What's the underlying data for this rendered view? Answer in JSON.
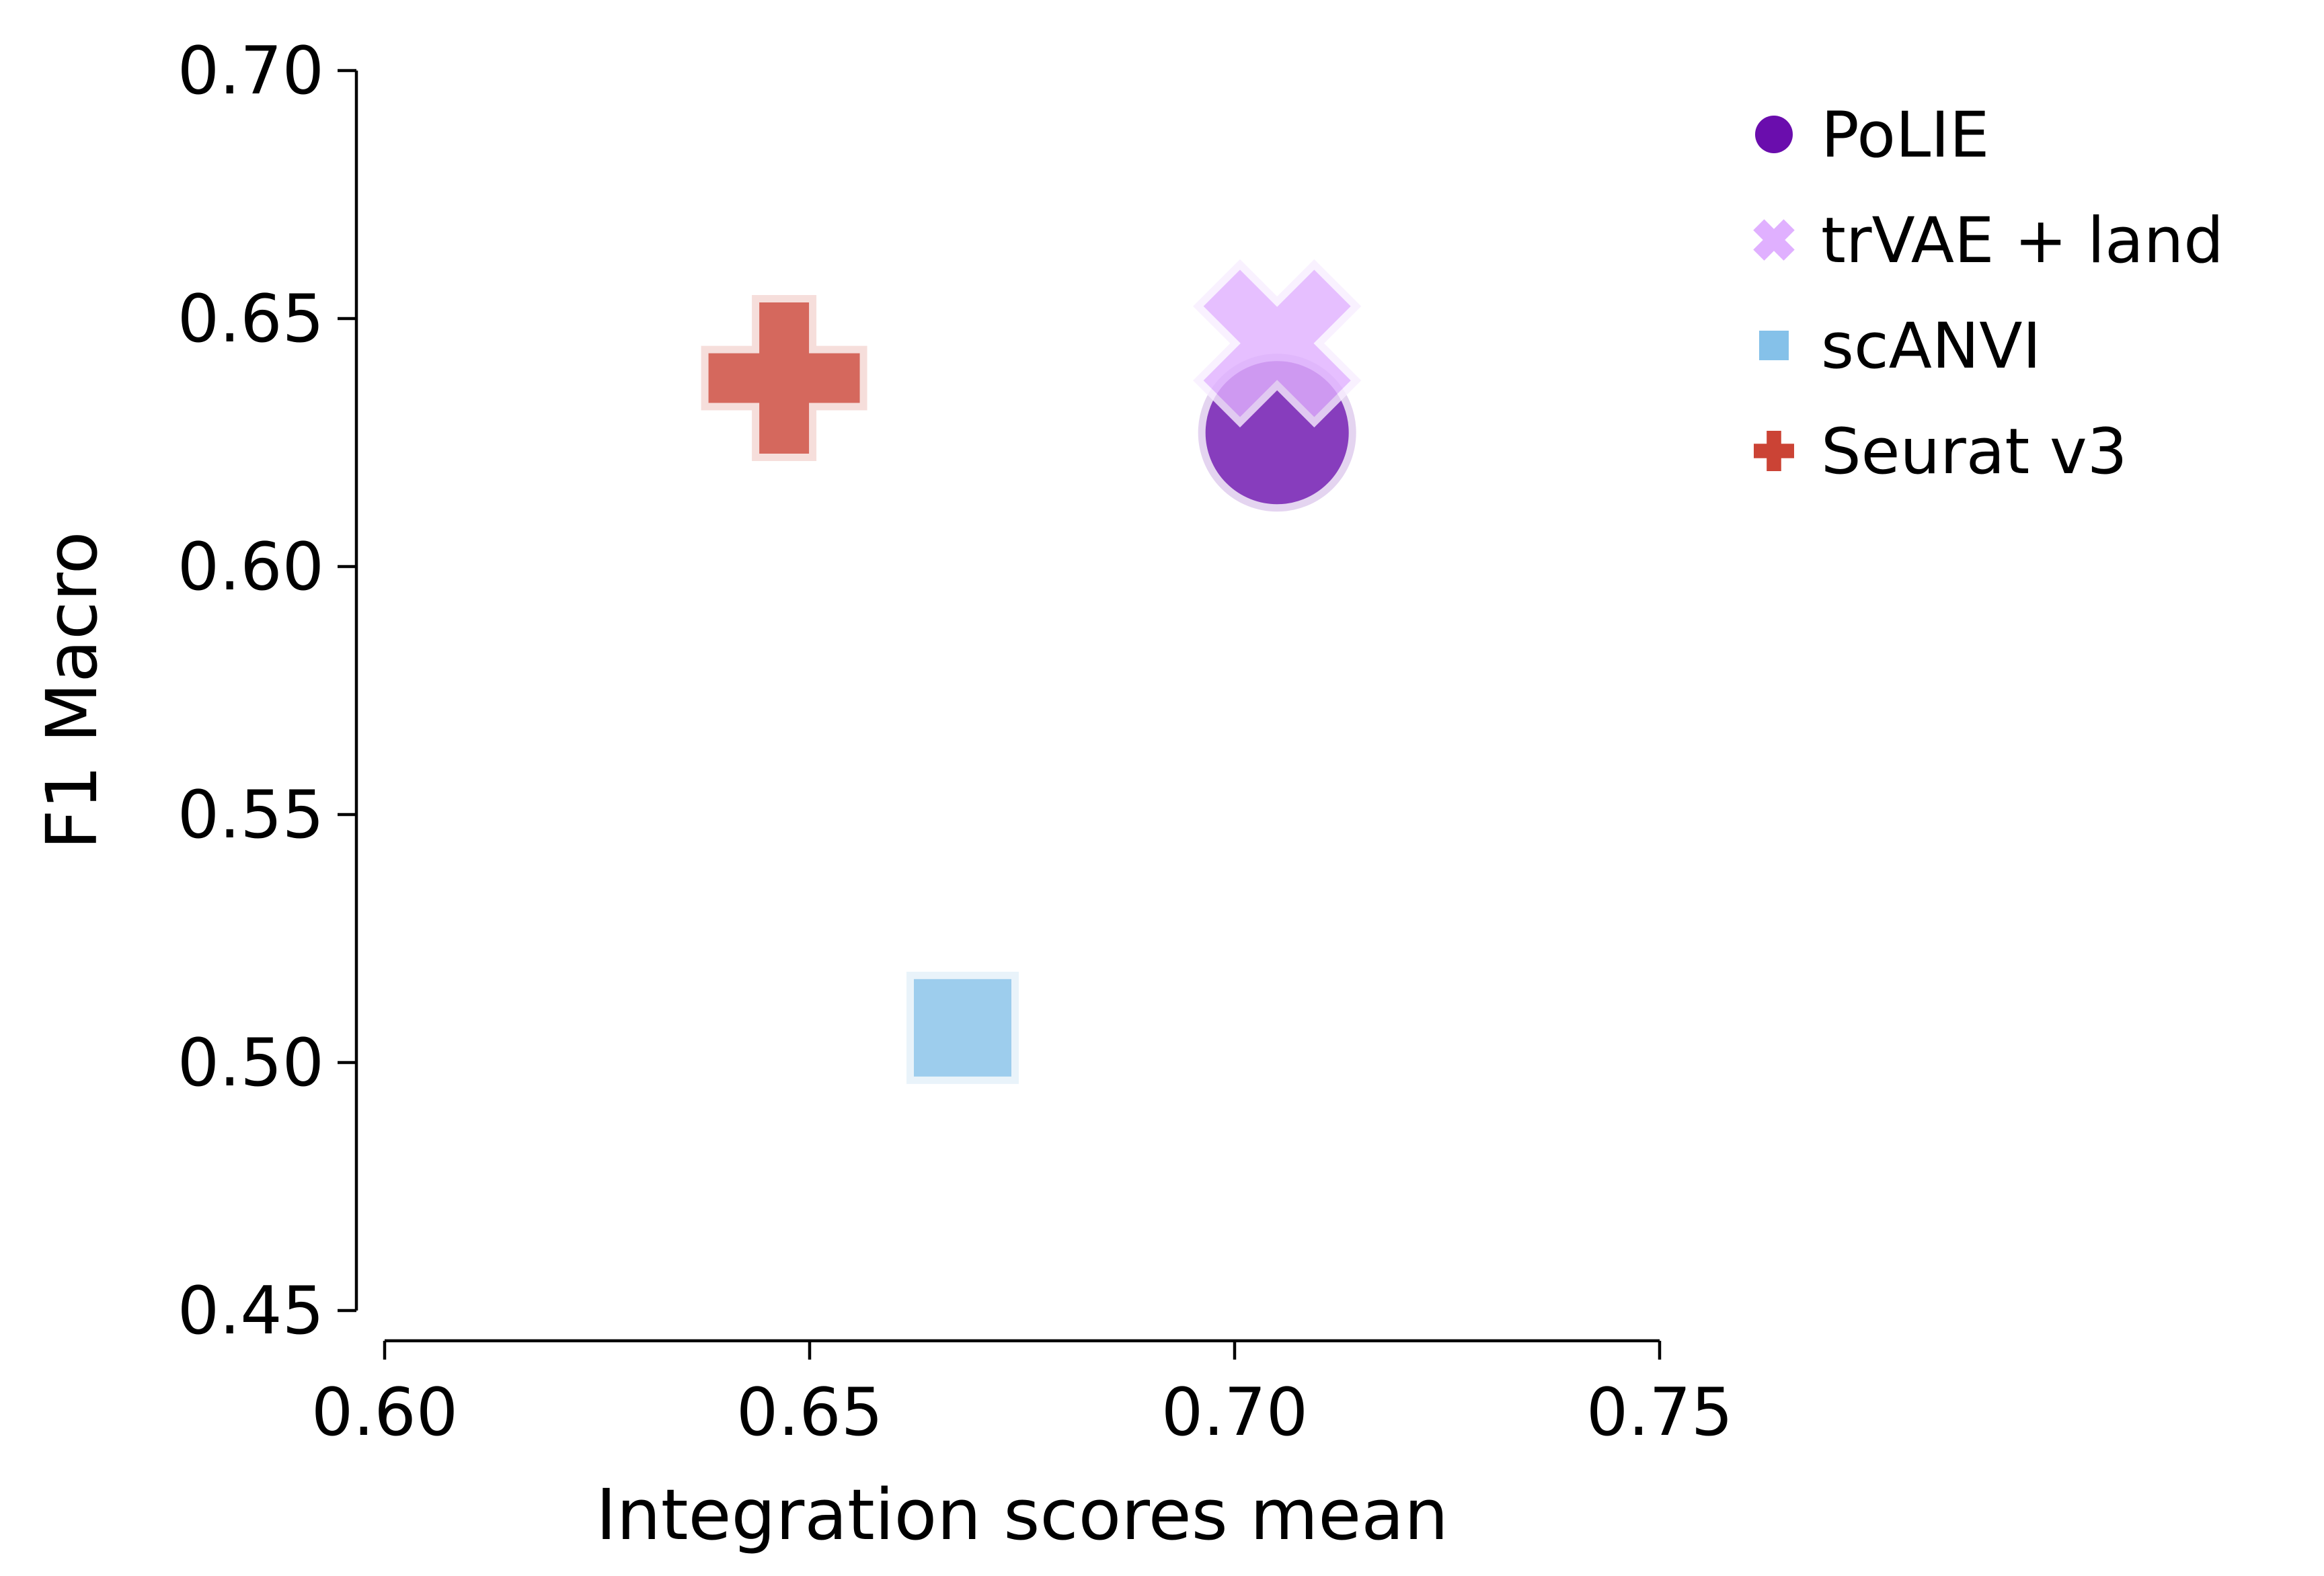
{
  "chart_data": {
    "type": "scatter",
    "xlabel": "Integration scores mean",
    "ylabel": "F1 Macro",
    "xlim": [
      0.6,
      0.75
    ],
    "ylim": [
      0.45,
      0.7
    ],
    "xticks": [
      "0.60",
      "0.65",
      "0.70",
      "0.75"
    ],
    "yticks": [
      "0.45",
      "0.50",
      "0.55",
      "0.60",
      "0.65",
      "0.70"
    ],
    "grid": false,
    "legend_position": "top-right, outside plot",
    "series": [
      {
        "name": "PoLIE",
        "marker": "circle",
        "color": "#6a0dad",
        "x": 0.705,
        "y": 0.627
      },
      {
        "name": "trVAE + land",
        "marker": "x",
        "color": "#e0b0ff",
        "x": 0.705,
        "y": 0.645
      },
      {
        "name": "scANVI",
        "marker": "square",
        "color": "#85c1e9",
        "x": 0.668,
        "y": 0.507
      },
      {
        "name": "Seurat v3",
        "marker": "plus",
        "color": "#cb4335",
        "x": 0.647,
        "y": 0.638
      }
    ]
  }
}
